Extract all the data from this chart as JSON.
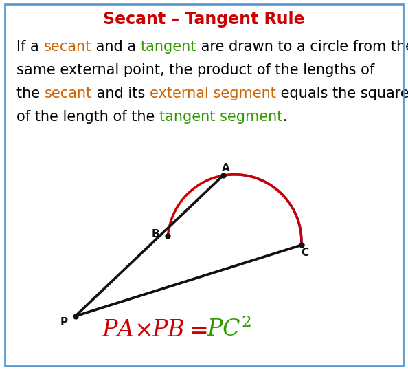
{
  "title": "Secant – Tangent Rule",
  "title_color": "#cc0000",
  "background_color": "#ffffff",
  "border_color": "#5b9bd5",
  "arc_blue_color": "#2222cc",
  "arc_red_color": "#cc0000",
  "line_color": "#111111",
  "dot_color": "#111111",
  "label_color": "#111111",
  "secant_text_color": "#cc6600",
  "tangent_text_color": "#339900",
  "formula_left_color": "#cc0000",
  "formula_right_color": "#339900",
  "para_lines": [
    [
      [
        "If a ",
        "#000000"
      ],
      [
        "secant",
        "#cc6600"
      ],
      [
        " and a ",
        "#000000"
      ],
      [
        "tangent",
        "#339900"
      ],
      [
        " are drawn to a circle from the",
        "#000000"
      ]
    ],
    [
      [
        "same external point, the product of the lengths of",
        "#000000"
      ]
    ],
    [
      [
        "the ",
        "#000000"
      ],
      [
        "secant",
        "#cc6600"
      ],
      [
        " and its ",
        "#000000"
      ],
      [
        "external segment",
        "#cc6600"
      ],
      [
        " equals the square",
        "#000000"
      ]
    ],
    [
      [
        "of the length of the ",
        "#000000"
      ],
      [
        "tangent segment",
        "#339900"
      ],
      [
        ".",
        "#000000"
      ]
    ]
  ],
  "fontsize_para": 15.0,
  "fontsize_title": 17.0,
  "fontsize_label": 11,
  "dot_size": 5,
  "line_width": 2.2
}
